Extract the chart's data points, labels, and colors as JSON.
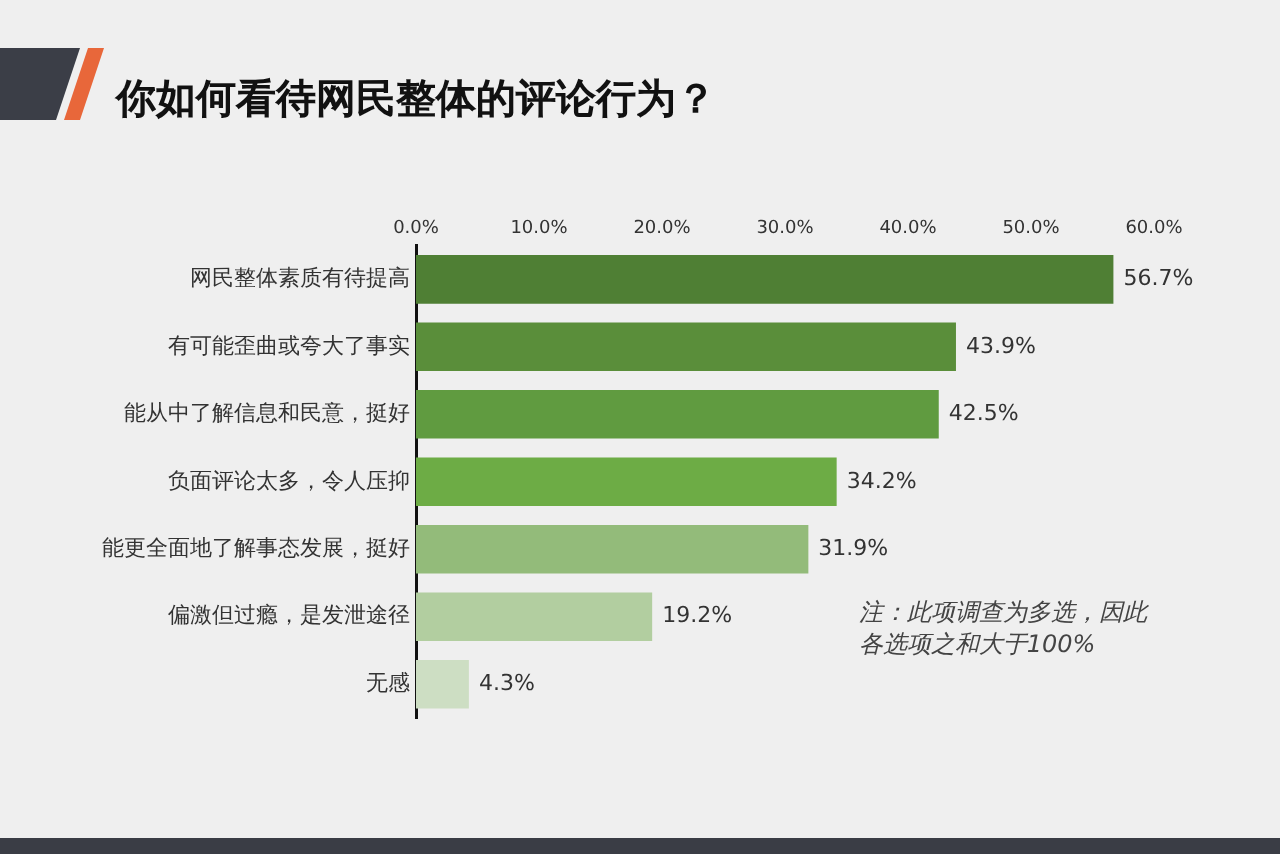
{
  "chart_data": {
    "type": "bar",
    "orientation": "horizontal",
    "title": "你如何看待网民整体的评论行为？",
    "categories": [
      "网民整体素质有待提高",
      "有可能歪曲或夸大了事实",
      "能从中了解信息和民意，挺好",
      "负面评论太多，令人压抑",
      "能更全面地了解事态发展，挺好",
      "偏激但过瘾，是发泄途径",
      "无感"
    ],
    "values": [
      56.7,
      43.9,
      42.5,
      34.2,
      31.9,
      19.2,
      4.3
    ],
    "colors": [
      "#4f7f34",
      "#5a8e3a",
      "#609b40",
      "#6dac45",
      "#93bb7a",
      "#b2cea0",
      "#cddec3"
    ],
    "value_labels": [
      "56.7%",
      "43.9%",
      "42.5%",
      "34.2%",
      "31.9%",
      "19.2%",
      "4.3%"
    ],
    "xlim": [
      0,
      60
    ],
    "xticks": [
      {
        "value": 0,
        "label": "0.0%"
      },
      {
        "value": 10,
        "label": "10.0%"
      },
      {
        "value": 20,
        "label": "20.0%"
      },
      {
        "value": 30,
        "label": "30.0%"
      },
      {
        "value": 40,
        "label": "40.0%"
      },
      {
        "value": 50,
        "label": "50.0%"
      },
      {
        "value": 60,
        "label": "60.0%"
      }
    ],
    "grid": false,
    "annotations": [
      "注：此项调查为多选，因此各选项之和大于100%"
    ]
  }
}
